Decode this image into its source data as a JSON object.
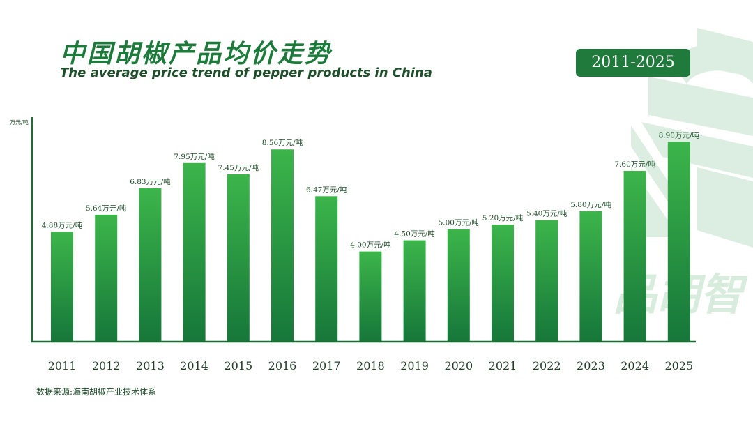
{
  "header": {
    "title_cn": "中国胡椒产品均价走势",
    "title_en": "The average price trend of pepper products in China",
    "year_range": "2011-2025"
  },
  "watermark": {
    "text": "品胡智"
  },
  "source": "数据来源:海南胡椒产业技术体系",
  "colors": {
    "bar_top": "#3cb54a",
    "bar_bottom": "#16773a",
    "title": "#1c7a3a",
    "badge": "#1f7a3c",
    "watermark": "#d7ecdc"
  },
  "chart_data": {
    "type": "bar",
    "ylabel": "万元/吨",
    "xlabel": "",
    "ylim": [
      0,
      10
    ],
    "grid": false,
    "legend": "none",
    "categories": [
      "2011",
      "2012",
      "2013",
      "2014",
      "2015",
      "2016",
      "2017",
      "2018",
      "2019",
      "2020",
      "2021",
      "2022",
      "2023",
      "2024",
      "2025"
    ],
    "values": [
      4.88,
      5.64,
      6.83,
      7.95,
      7.45,
      8.56,
      6.47,
      4.0,
      4.5,
      5.0,
      5.2,
      5.4,
      5.8,
      7.6,
      8.9
    ],
    "value_labels": [
      "4.88万元/吨",
      "5.64万元/吨",
      "6.83万元/吨",
      "7.95万元/吨",
      "7.45万元/吨",
      "8.56万元/吨",
      "6.47万元/吨",
      "4.00万元/吨",
      "4.50万元/吨",
      "5.00万元/吨",
      "5.20万元/吨",
      "5.40万元/吨",
      "5.80万元/吨",
      "7.60万元/吨",
      "8.90万元/吨"
    ]
  }
}
